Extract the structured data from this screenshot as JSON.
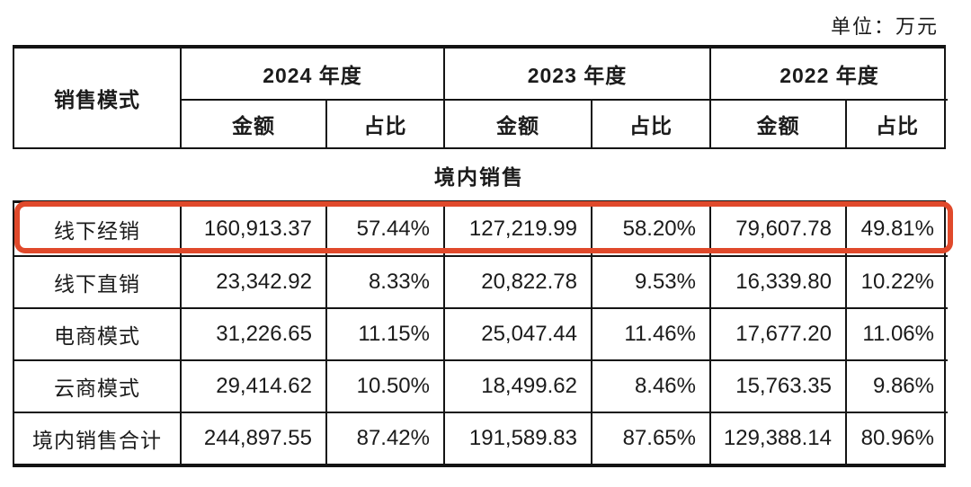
{
  "page": {
    "unit_label": "单位：万元"
  },
  "table": {
    "header": {
      "mode_col": "销售模式",
      "years": [
        "2024 年度",
        "2023 年度",
        "2022 年度"
      ],
      "sub_amount": "金额",
      "sub_ratio": "占比"
    },
    "section_title": "境内销售",
    "rows": [
      {
        "label": "线下经销",
        "values": [
          "160,913.37",
          "57.44%",
          "127,219.99",
          "58.20%",
          "79,607.78",
          "49.81%"
        ],
        "highlighted": true
      },
      {
        "label": "线下直销",
        "values": [
          "23,342.92",
          "8.33%",
          "20,822.78",
          "9.53%",
          "16,339.80",
          "10.22%"
        ],
        "highlighted": false
      },
      {
        "label": "电商模式",
        "values": [
          "31,226.65",
          "11.15%",
          "25,047.44",
          "11.46%",
          "17,677.20",
          "11.06%"
        ],
        "highlighted": false
      },
      {
        "label": "云商模式",
        "values": [
          "29,414.62",
          "10.50%",
          "18,499.62",
          "8.46%",
          "15,763.35",
          "9.86%"
        ],
        "highlighted": false
      },
      {
        "label": "境内销售合计",
        "values": [
          "244,897.55",
          "87.42%",
          "191,589.83",
          "87.65%",
          "129,388.14",
          "80.96%"
        ],
        "highlighted": false
      }
    ],
    "highlight_color": "#e0492b",
    "border_color": "#141414"
  }
}
